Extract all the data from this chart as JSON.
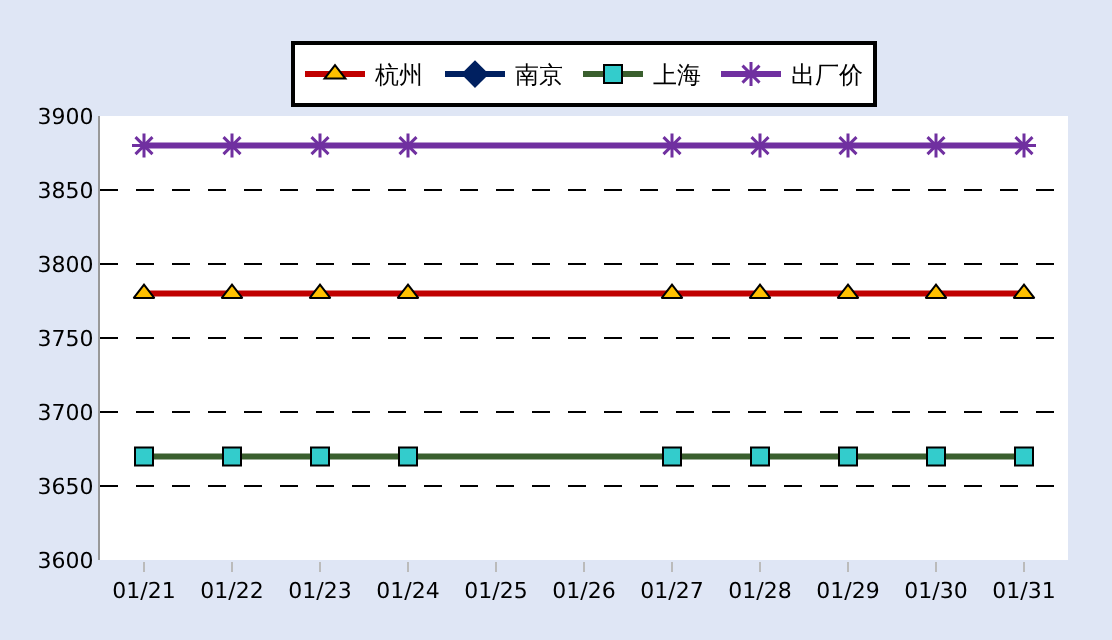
{
  "chart_data": {
    "type": "line",
    "categories": [
      "01/21",
      "01/22",
      "01/23",
      "01/24",
      "01/25",
      "01/26",
      "01/27",
      "01/28",
      "01/29",
      "01/30",
      "01/31"
    ],
    "series": [
      {
        "name": "杭州",
        "color": "#c00000",
        "marker": "triangle",
        "values": [
          3780,
          3780,
          3780,
          3780,
          null,
          null,
          3780,
          3780,
          3780,
          3780,
          3780
        ]
      },
      {
        "name": "南京",
        "color": "#002060",
        "marker": "diamond",
        "values": [
          null,
          null,
          null,
          null,
          null,
          null,
          null,
          null,
          null,
          null,
          null
        ]
      },
      {
        "name": "上海",
        "color": "#3a5f2e",
        "marker": "square",
        "values": [
          3670,
          3670,
          3670,
          3670,
          null,
          null,
          3670,
          3670,
          3670,
          3670,
          3670
        ]
      },
      {
        "name": "出厂价",
        "color": "#7030a0",
        "marker": "cross",
        "values": [
          3880,
          3880,
          3880,
          3880,
          null,
          null,
          3880,
          3880,
          3880,
          3880,
          3880
        ]
      }
    ],
    "ylim": [
      3600,
      3900
    ],
    "yticks": [
      3600,
      3650,
      3700,
      3750,
      3800,
      3850,
      3900
    ],
    "grid": "y",
    "legend": "top",
    "line_style": "solid"
  }
}
